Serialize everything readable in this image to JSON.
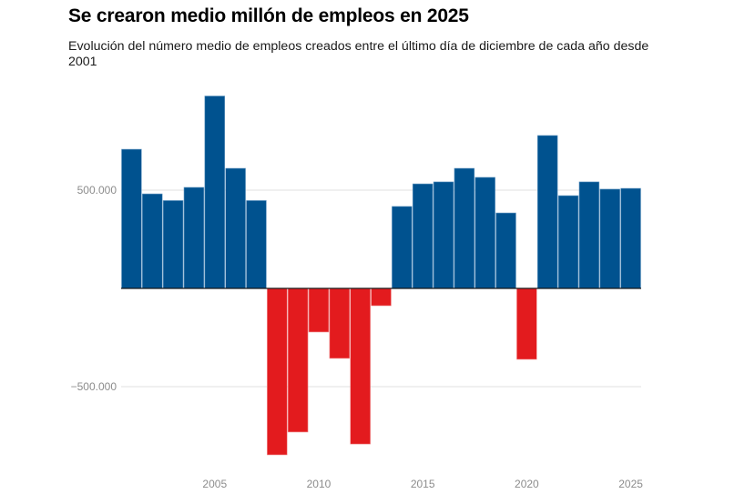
{
  "chart_data": {
    "type": "bar",
    "title": "Se crearon medio millón de empleos en 2025",
    "subtitle": "Evolución del número medio de empleos creados entre el último día de diciembre de cada año desde 2001",
    "xlabel": "",
    "ylabel": "",
    "categories": [
      "2001",
      "2002",
      "2003",
      "2004",
      "2005",
      "2006",
      "2007",
      "2008",
      "2009",
      "2010",
      "2011",
      "2012",
      "2013",
      "2014",
      "2015",
      "2016",
      "2017",
      "2018",
      "2019",
      "2020",
      "2021",
      "2022",
      "2023",
      "2024",
      "2025"
    ],
    "values": [
      708000,
      481000,
      447000,
      514000,
      979000,
      611000,
      447000,
      -847000,
      -731000,
      -222000,
      -356000,
      -792000,
      -88000,
      417000,
      532000,
      542000,
      611000,
      565000,
      384000,
      -361000,
      778000,
      472000,
      542000,
      505000,
      509000
    ],
    "ylim": [
      -850000,
      980000
    ],
    "yticks": [
      {
        "value": 500000,
        "label": "500.000"
      },
      {
        "value": -500000,
        "label": "−500.000"
      }
    ],
    "xticks": [
      {
        "value": "2005",
        "label": "2005"
      },
      {
        "value": "2010",
        "label": "2010"
      },
      {
        "value": "2015",
        "label": "2015"
      },
      {
        "value": "2020",
        "label": "2020"
      },
      {
        "value": "2025",
        "label": "2025"
      }
    ],
    "grid": true,
    "legend": "none",
    "colors": {
      "positive": "#00528f",
      "negative": "#e31b1e",
      "grid": "#e2e2e2",
      "zero_line": "#1a1a1a"
    }
  }
}
